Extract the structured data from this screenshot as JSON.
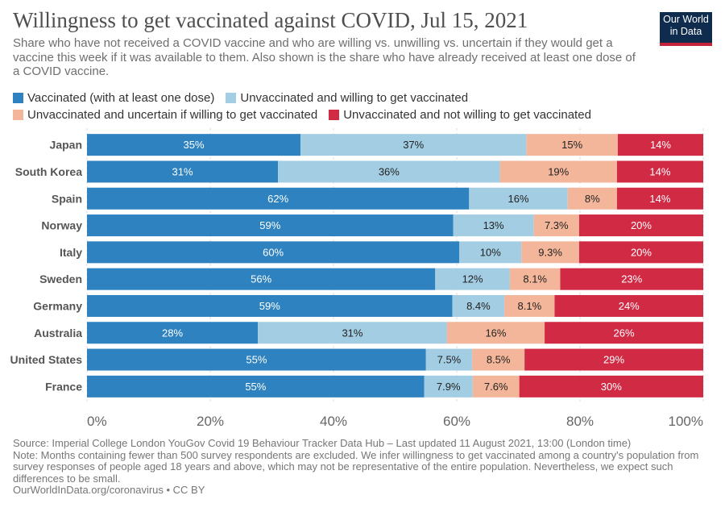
{
  "header": {
    "title": "Willingness to get vaccinated against COVID, Jul 15, 2021",
    "subtitle": "Share who have not received a COVID vaccine and who are willing vs. unwilling vs. uncertain if they would get a vaccine this week if it was available to them. Also shown is the share who have already received at least one dose of a COVID vaccine.",
    "logo_line1": "Our World",
    "logo_line2": "in Data"
  },
  "colors": {
    "vaccinated": "#2d82bf",
    "willing": "#a3cde3",
    "uncertain": "#f4b69a",
    "unwilling": "#d12a44",
    "logo_bg": "#0f2c4e",
    "logo_accent": "#c4233a"
  },
  "chart_data": {
    "type": "bar",
    "orientation": "horizontal",
    "stacked": true,
    "categories": [
      "Japan",
      "South Korea",
      "Spain",
      "Norway",
      "Italy",
      "Sweden",
      "Germany",
      "Australia",
      "United States",
      "France"
    ],
    "series": [
      {
        "name": "Vaccinated (with at least one dose)",
        "color": "#2d82bf",
        "label_color": "#ffffff",
        "values": [
          35,
          31,
          62,
          59,
          60,
          56,
          59,
          28,
          55,
          55
        ],
        "labels": [
          "35%",
          "31%",
          "62%",
          "59%",
          "60%",
          "56%",
          "59%",
          "28%",
          "55%",
          "55%"
        ]
      },
      {
        "name": "Unvaccinated and willing to get vaccinated",
        "color": "#a3cde3",
        "label_color": "#222222",
        "values": [
          37,
          36,
          16,
          13,
          10,
          12,
          8.4,
          31,
          7.5,
          7.9
        ],
        "labels": [
          "37%",
          "36%",
          "16%",
          "13%",
          "10%",
          "12%",
          "8.4%",
          "31%",
          "7.5%",
          "7.9%"
        ]
      },
      {
        "name": "Unvaccinated and uncertain if willing to get vaccinated",
        "color": "#f4b69a",
        "label_color": "#222222",
        "values": [
          15,
          19,
          8,
          7.3,
          9.3,
          8.1,
          8.1,
          16,
          8.5,
          7.6
        ],
        "labels": [
          "15%",
          "19%",
          "8%",
          "7.3%",
          "9.3%",
          "8.1%",
          "8.1%",
          "16%",
          "8.5%",
          "7.6%"
        ]
      },
      {
        "name": "Unvaccinated and not willing to get vaccinated",
        "color": "#d12a44",
        "label_color": "#ffffff",
        "values": [
          14,
          14,
          14,
          20,
          20,
          23,
          24,
          26,
          29,
          30
        ],
        "labels": [
          "14%",
          "14%",
          "14%",
          "20%",
          "20%",
          "23%",
          "24%",
          "26%",
          "29%",
          "30%"
        ]
      }
    ],
    "xlim": [
      0,
      100
    ],
    "xticks": [
      0,
      20,
      40,
      60,
      80,
      100
    ],
    "xtick_labels": [
      "0%",
      "20%",
      "40%",
      "60%",
      "80%",
      "100%"
    ],
    "grid": true,
    "legend_position": "top"
  },
  "footer": {
    "source": "Source: Imperial College London YouGov Covid 19 Behaviour Tracker Data Hub – Last updated 11 August 2021, 13:00 (London time)",
    "note": "Note: Months containing fewer than 500 survey respondents are excluded. We infer willingness to get vaccinated among a country's population from survey responses of people aged 18 years and above, which may not be representative of the entire population. Nevertheless, we expect such differences to be small.",
    "credit": "OurWorldInData.org/coronavirus • CC BY"
  }
}
